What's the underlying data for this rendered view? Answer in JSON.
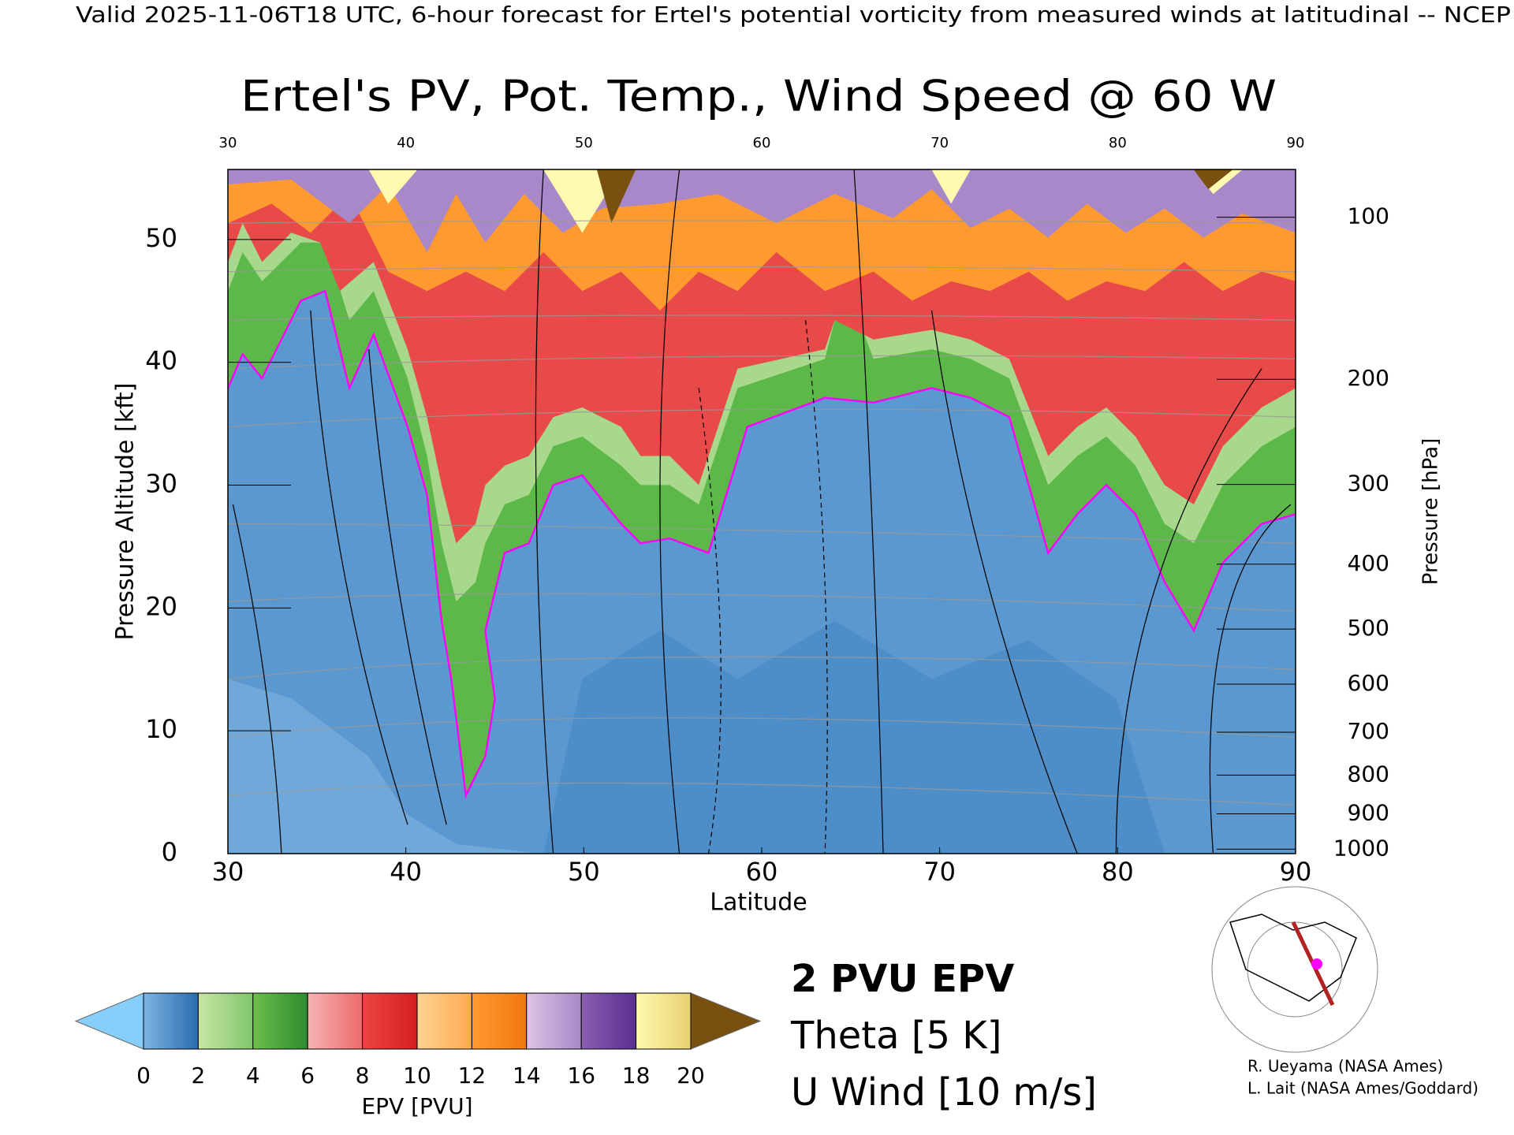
{
  "header": "Valid 2025-11-06T18 UTC, 6-hour forecast for Ertel's potential vorticity from measured winds at latitudinal -- NCEP",
  "chart_data": {
    "type": "contour",
    "title": "Ertel's PV, Pot. Temp., Wind Speed @ 60 W",
    "x_label": "Latitude",
    "y_label": "Pressure Altitude [kft]",
    "y2_label": "Pressure [hPa]",
    "xlim": [
      30,
      90
    ],
    "xticks": [
      30,
      40,
      50,
      60,
      70,
      80,
      90
    ],
    "ylim": [
      0,
      55.7
    ],
    "yticks": [
      0,
      10,
      20,
      30,
      40,
      50
    ],
    "y2ticks": [
      100,
      200,
      300,
      400,
      500,
      600,
      700,
      800,
      900,
      1000
    ],
    "colorbar": {
      "label": "EPV [PVU]",
      "ticks": [
        0,
        2,
        4,
        6,
        8,
        10,
        12,
        14,
        16,
        18,
        20
      ],
      "colors": [
        [
          "#7db4e0",
          "#2b6cb0"
        ],
        [
          "#c8e6a4",
          "#80c66c"
        ],
        [
          "#6cbf4c",
          "#2e8b2e"
        ],
        [
          "#f6b4b4",
          "#ee6a6a"
        ],
        [
          "#ee4444",
          "#d42020"
        ],
        [
          "#ffd294",
          "#ffaa50"
        ],
        [
          "#ff9a30",
          "#f07810"
        ],
        [
          "#dcc4e4",
          "#a888c8"
        ],
        [
          "#8a60b0",
          "#5a2e90"
        ],
        [
          "#fffab0",
          "#e8d070"
        ]
      ],
      "under_color": "#87cefa",
      "over_color": "#7a5010"
    },
    "legend": [
      {
        "name": "2 PVU EPV",
        "color": "#ff00ff"
      },
      {
        "name": "Theta [5 K]",
        "color": "#aaaaaa"
      },
      {
        "name": "U Wind [10 m/s]",
        "color": "#000000"
      }
    ]
  },
  "credits": [
    "R. Ueyama (NASA Ames)",
    "L. Lait (NASA Ames/Goddard)"
  ]
}
